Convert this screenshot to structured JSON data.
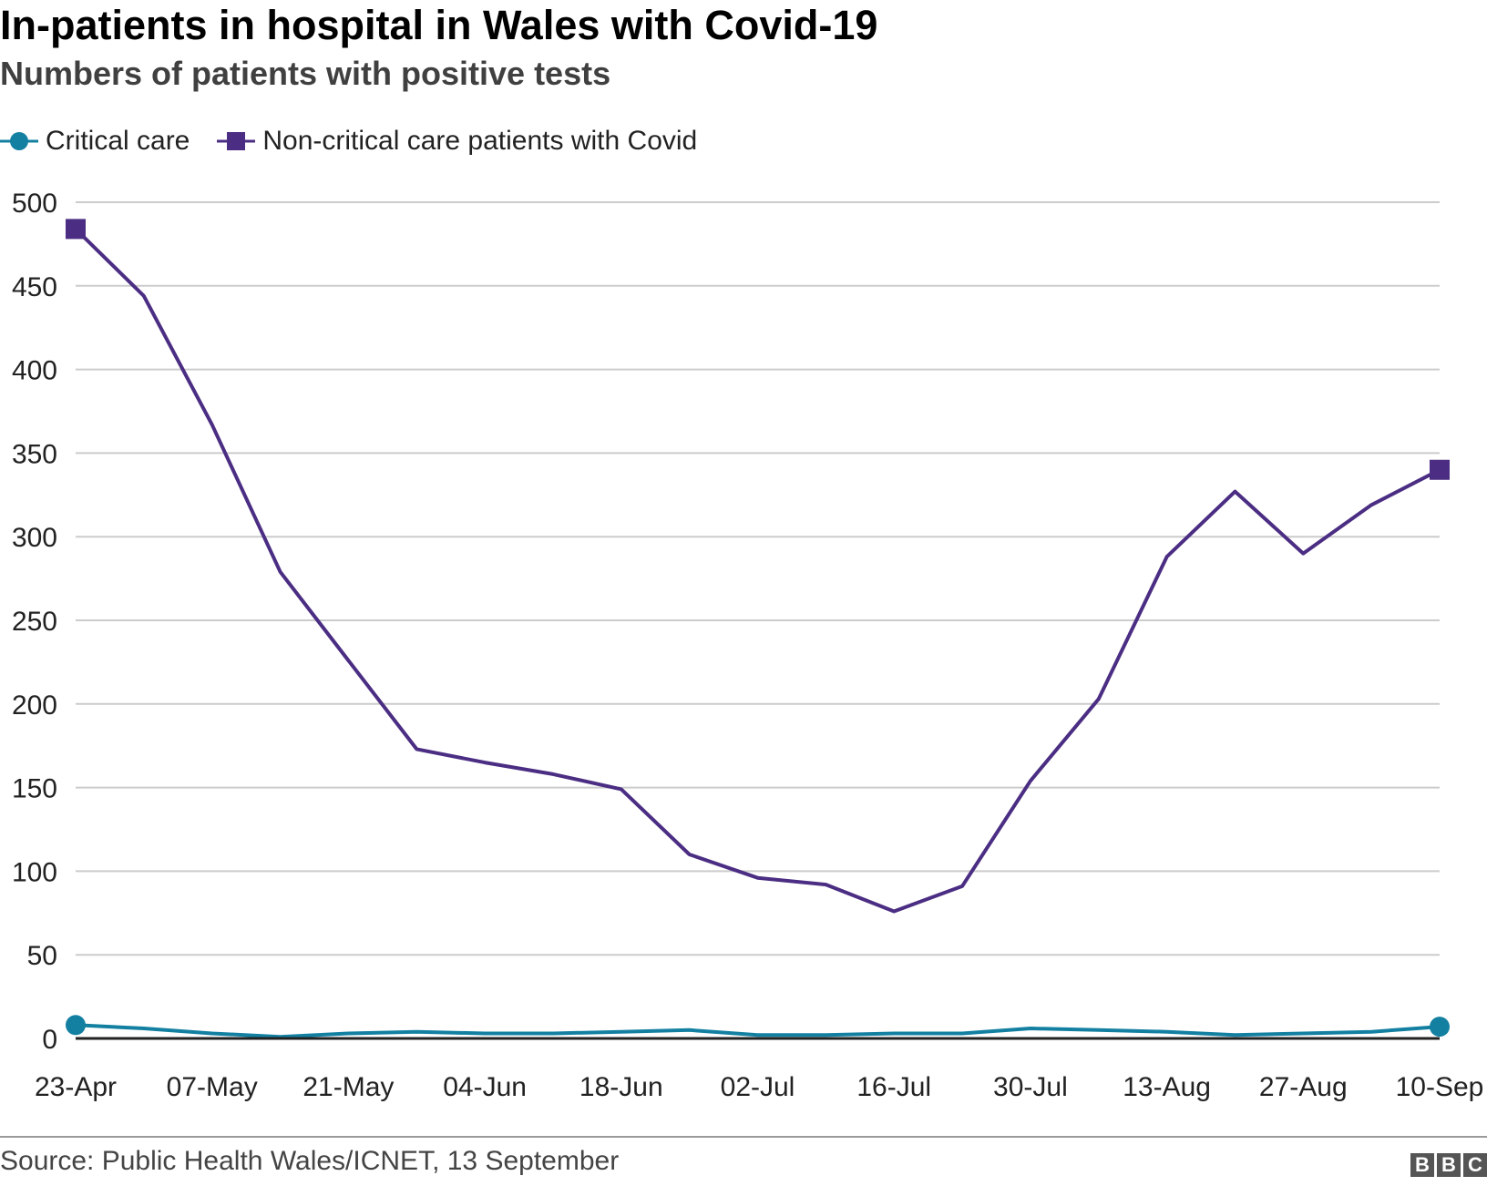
{
  "title": "In-patients in hospital in Wales with Covid-19",
  "subtitle": "Numbers of patients with positive tests",
  "source": "Source: Public Health Wales/ICNET, 13 September",
  "logo": [
    "B",
    "B",
    "C"
  ],
  "colors": {
    "critical": "#1380a1",
    "non_critical": "#4b2e83",
    "grid": "#cccccc",
    "axis": "#222222"
  },
  "chart_data": {
    "type": "line",
    "title": "In-patients in hospital in Wales with Covid-19",
    "subtitle": "Numbers of patients with positive tests",
    "xlabel": "",
    "ylabel": "",
    "ylim": [
      0,
      500
    ],
    "yticks": [
      0,
      50,
      100,
      150,
      200,
      250,
      300,
      350,
      400,
      450,
      500
    ],
    "x": [
      "23-Apr",
      "30-Apr",
      "07-May",
      "14-May",
      "21-May",
      "28-May",
      "04-Jun",
      "11-Jun",
      "18-Jun",
      "25-Jun",
      "02-Jul",
      "09-Jul",
      "16-Jul",
      "23-Jul",
      "30-Jul",
      "06-Aug",
      "13-Aug",
      "20-Aug",
      "27-Aug",
      "03-Sep",
      "10-Sep"
    ],
    "xtick_labels": [
      "23-Apr",
      "07-May",
      "21-May",
      "04-Jun",
      "18-Jun",
      "02-Jul",
      "16-Jul",
      "30-Jul",
      "13-Aug",
      "27-Aug",
      "10-Sep"
    ],
    "grid": true,
    "legend": "top-left",
    "series": [
      {
        "name": "Critical care",
        "marker": "circle",
        "values": [
          8,
          6,
          3,
          1,
          3,
          4,
          3,
          3,
          4,
          5,
          2,
          2,
          3,
          3,
          6,
          5,
          4,
          2,
          3,
          4,
          7
        ]
      },
      {
        "name": "Non-critical care patients with Covid",
        "marker": "square",
        "values": [
          484,
          444,
          367,
          279,
          226,
          173,
          165,
          158,
          149,
          110,
          96,
          92,
          76,
          91,
          154,
          203,
          288,
          327,
          290,
          319,
          340
        ]
      }
    ]
  }
}
